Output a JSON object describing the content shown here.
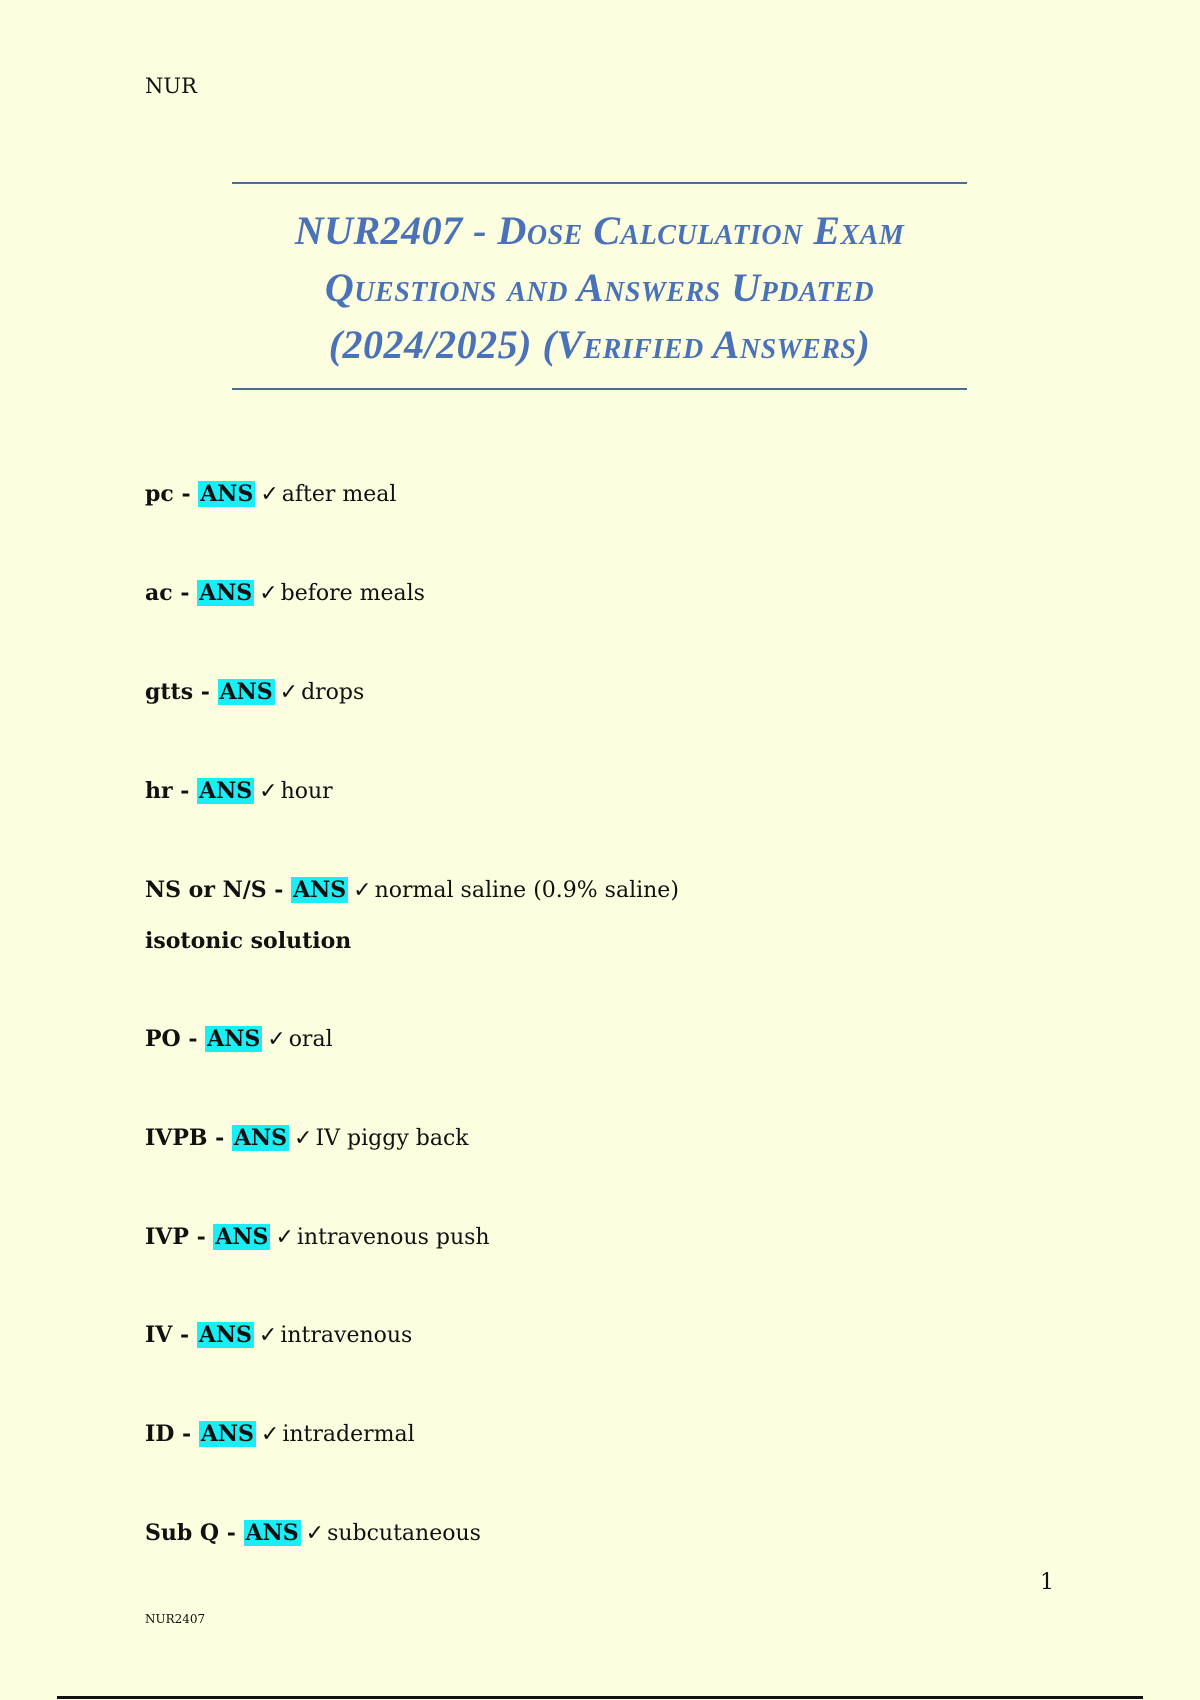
{
  "header": {
    "text": "NUR"
  },
  "title": {
    "lines": [
      "NUR2407 - Dose Calculation Exam",
      "Questions and Answers Updated",
      "(2024/2025) (Verified Answers)"
    ]
  },
  "entries": [
    {
      "term": "pc",
      "sep": " - ",
      "ans": "ANS",
      "check": "✓",
      "answer": "after meal"
    },
    {
      "term": "ac",
      "sep": " - ",
      "ans": "ANS",
      "check": "✓",
      "answer": "before meals"
    },
    {
      "term": "gtts",
      "sep": " - ",
      "ans": "ANS",
      "check": "✓",
      "answer": "drops"
    },
    {
      "term": "hr",
      "sep": " - ",
      "ans": "ANS",
      "check": "✓",
      "answer": "hour"
    },
    {
      "term": "NS or N/S",
      "sep": " - ",
      "ans": "ANS",
      "check": "✓",
      "answer": "normal saline (0.9% saline)",
      "extra": "isotonic solution"
    },
    {
      "term": "PO",
      "sep": " - ",
      "ans": "ANS",
      "check": "✓",
      "answer": "oral"
    },
    {
      "term": "IVPB",
      "sep": " - ",
      "ans": "ANS",
      "check": "✓",
      "answer": "IV piggy back"
    },
    {
      "term": "IVP",
      "sep": " - ",
      "ans": "ANS",
      "check": "✓",
      "answer": "intravenous push"
    },
    {
      "term": "IV",
      "sep": " - ",
      "ans": "ANS",
      "check": "✓",
      "answer": "intravenous"
    },
    {
      "term": "ID",
      "sep": " - ",
      "ans": "ANS",
      "check": "✓",
      "answer": "intradermal"
    },
    {
      "term": "Sub Q",
      "sep": " - ",
      "ans": "ANS",
      "check": "✓",
      "answer": "subcutaneous"
    }
  ],
  "page_number": "1",
  "footer": {
    "text": "NUR2407"
  },
  "colors": {
    "background": "#fdfddf",
    "title": "#4a72b8",
    "highlight": "#19eef7"
  }
}
